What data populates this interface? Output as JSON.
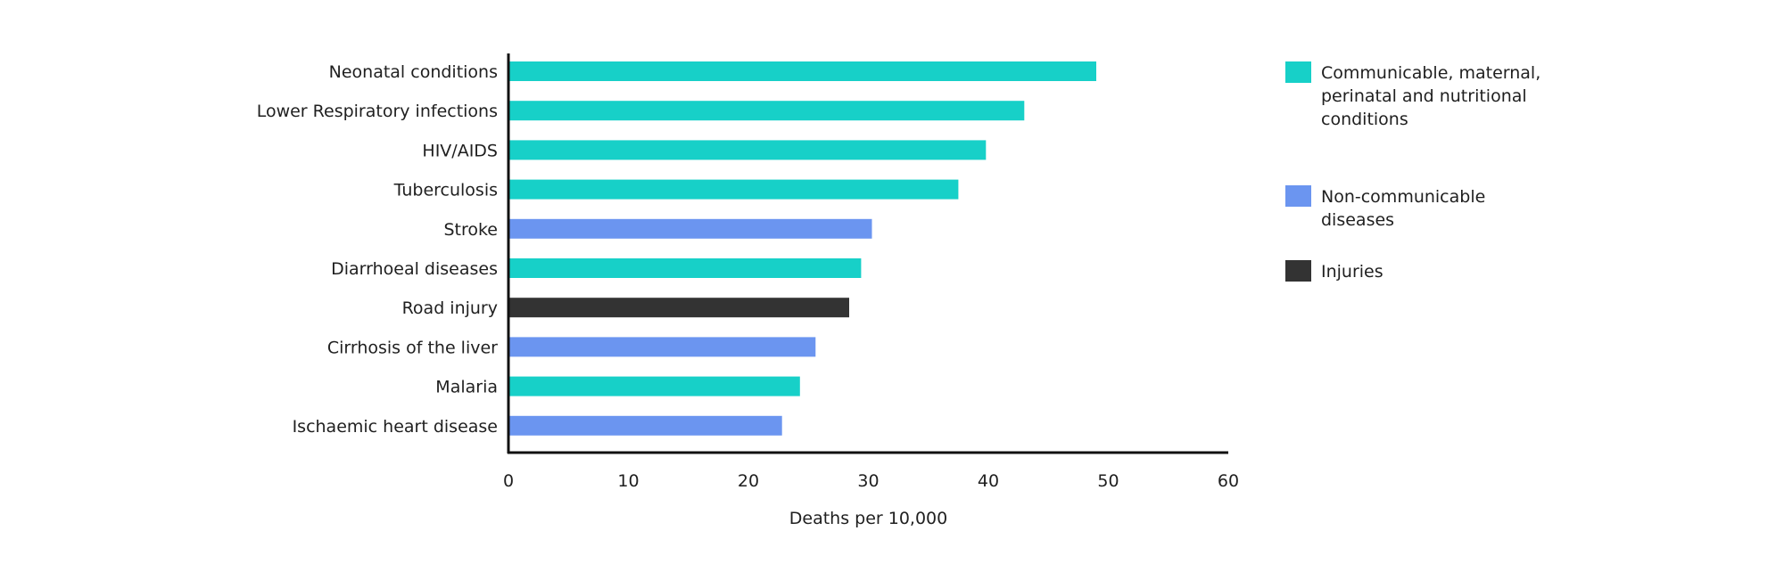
{
  "chart_data": {
    "type": "bar",
    "orientation": "horizontal",
    "title": "",
    "xlabel": "Deaths per 10,000",
    "ylabel": "",
    "xlim": [
      0,
      60
    ],
    "xticks": [
      0,
      10,
      20,
      30,
      40,
      50,
      60
    ],
    "grid": false,
    "legend_position": "right",
    "groups": [
      {
        "key": "communicable",
        "name": "Communicable, maternal, perinatal and nutritional conditions",
        "lines": [
          "Communicable, maternal,",
          "perinatal and nutritional",
          "conditions"
        ],
        "color": "#17d0c8"
      },
      {
        "key": "noncommunicable",
        "name": "Non-communicable diseases",
        "lines": [
          "Non-communicable",
          "diseases"
        ],
        "color": "#6b95f0"
      },
      {
        "key": "injuries",
        "name": "Injuries",
        "lines": [
          "Injuries"
        ],
        "color": "#333333"
      }
    ],
    "bars": [
      {
        "category": "Neonatal conditions",
        "value": 49,
        "group": "communicable"
      },
      {
        "category": "Lower Respiratory infections",
        "value": 43,
        "group": "communicable"
      },
      {
        "category": "HIV/AIDS",
        "value": 39.8,
        "group": "communicable"
      },
      {
        "category": "Tuberculosis",
        "value": 37.5,
        "group": "communicable"
      },
      {
        "category": "Stroke",
        "value": 30.3,
        "group": "noncommunicable"
      },
      {
        "category": "Diarrhoeal diseases",
        "value": 29.4,
        "group": "communicable"
      },
      {
        "category": "Road injury",
        "value": 28.4,
        "group": "injuries"
      },
      {
        "category": "Cirrhosis of the liver",
        "value": 25.6,
        "group": "noncommunicable"
      },
      {
        "category": "Malaria",
        "value": 24.3,
        "group": "communicable"
      },
      {
        "category": "Ischaemic heart disease",
        "value": 22.8,
        "group": "noncommunicable"
      }
    ]
  }
}
